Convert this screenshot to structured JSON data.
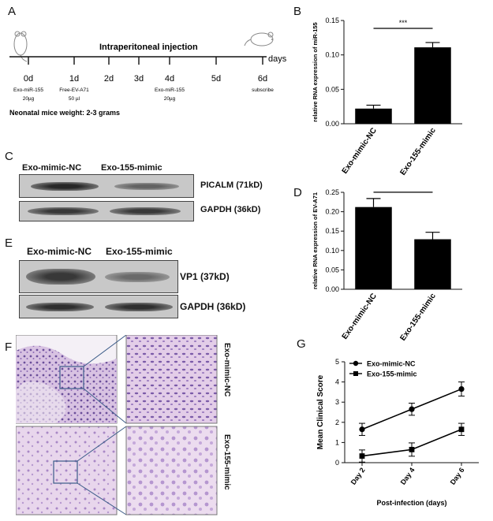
{
  "panels": {
    "A": "A",
    "B": "B",
    "C": "C",
    "D": "D",
    "E": "E",
    "F": "F",
    "G": "G"
  },
  "timeline": {
    "title": "Intraperitoneal injection",
    "unit_label": "days",
    "days": [
      {
        "label": "0d",
        "note1": "Exo-miR-155",
        "note2": "20µg"
      },
      {
        "label": "1d",
        "note1": "Free-EV-A71",
        "note2": "50 µl"
      },
      {
        "label": "2d",
        "note1": "",
        "note2": ""
      },
      {
        "label": "3d",
        "note1": "",
        "note2": ""
      },
      {
        "label": "4d",
        "note1": "Exo-miR-155",
        "note2": "20µg"
      },
      {
        "label": "5d",
        "note1": "",
        "note2": ""
      },
      {
        "label": "6d",
        "note1": "subscribe",
        "note2": ""
      }
    ],
    "weight_note": "Neonatal mice weight: 2-3 grams"
  },
  "blot_c": {
    "lanes": [
      "Exo-mimic-NC",
      "Exo-155-mimic"
    ],
    "rows": [
      {
        "label": "PICALM (71kD)",
        "intensity": [
          0.95,
          0.6
        ]
      },
      {
        "label": "GAPDH (36kD)",
        "intensity": [
          0.85,
          0.85
        ]
      }
    ]
  },
  "blot_e": {
    "lanes": [
      "Exo-mimic-NC",
      "Exo-155-mimic"
    ],
    "rows": [
      {
        "label": "VP1 (37kD)",
        "intensity": [
          0.85,
          0.55
        ]
      },
      {
        "label": "GAPDH (36kD)",
        "intensity": [
          0.9,
          0.9
        ]
      }
    ]
  },
  "histology": {
    "row_labels": [
      "Exo-mimic-NC",
      "Exo-155-mimic"
    ]
  },
  "chart_data": [
    {
      "panel": "B",
      "type": "bar",
      "categories": [
        "Exo-mimic-NC",
        "Exo-155-mimic"
      ],
      "values": [
        0.022,
        0.111
      ],
      "errors": [
        0.005,
        0.007
      ],
      "ylabel": "relative RNA expression of miR-155",
      "ylim": [
        0,
        0.15
      ],
      "yticks": [
        "0.00",
        "0.05",
        "0.10",
        "0.15"
      ],
      "significance": "***"
    },
    {
      "panel": "D",
      "type": "bar",
      "categories": [
        "Exo-mimic-NC",
        "Exo-155-mimic"
      ],
      "values": [
        0.212,
        0.129
      ],
      "errors": [
        0.022,
        0.018
      ],
      "ylabel": "relative RNA expression of EV-A71",
      "ylim": [
        0,
        0.25
      ],
      "yticks": [
        "0.00",
        "0.05",
        "0.10",
        "0.15",
        "0.20",
        "0.25"
      ],
      "significance": "*"
    },
    {
      "panel": "G",
      "type": "line",
      "categories": [
        "Day 2",
        "Day 4",
        "Day 6"
      ],
      "series": [
        {
          "name": "Exo-mimic-NC",
          "values": [
            1.65,
            2.65,
            3.65
          ],
          "errors": [
            0.3,
            0.3,
            0.35
          ],
          "marker": "circle"
        },
        {
          "name": "Exo-155-mimic",
          "values": [
            0.33,
            0.65,
            1.65
          ],
          "errors": [
            0.3,
            0.33,
            0.3
          ],
          "marker": "square"
        }
      ],
      "xlabel": "Post-infection (days)",
      "ylabel": "Mean Clinical Score",
      "ylim": [
        0,
        5
      ],
      "yticks": [
        "0",
        "1",
        "2",
        "3",
        "4",
        "5"
      ],
      "legend": "top-left"
    }
  ]
}
